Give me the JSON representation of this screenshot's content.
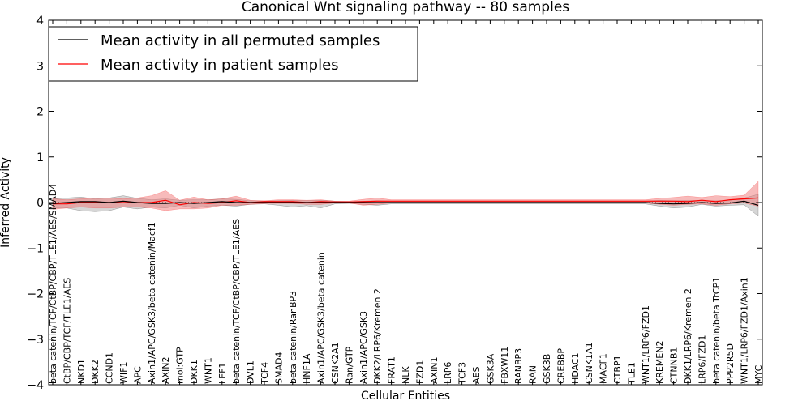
{
  "chart_data": {
    "type": "line",
    "title": "Canonical Wnt signaling pathway -- 80 samples",
    "xlabel": "Cellular Entities",
    "ylabel": "Inferred Activity",
    "ylim": [
      -4,
      4
    ],
    "yticks": [
      4,
      3,
      2,
      1,
      0,
      -1,
      -2,
      -3,
      -4
    ],
    "ytick_labels": [
      "4",
      "3",
      "2",
      "1",
      "0",
      "−1",
      "−2",
      "−3",
      "−4"
    ],
    "grid": false,
    "legend_position": "top-left",
    "categories": [
      "beta catenin/TCF/CtBP/CBP/TLE1/AES/SMAD4",
      "CtBP/CBP/TCF/TLE1/AES",
      "NKD1",
      "DKK2",
      "CCND1",
      "WIF1",
      "APC",
      "Axin1/APC/GSK3/beta catenin/Macf1",
      "AXIN2",
      "mol:GTP",
      "DKK1",
      "WNT1",
      "LEF1",
      "beta catenin/TCF/CtBP/CBP/TLE1/AES",
      "DVL1",
      "TCF4",
      "SMAD4",
      "beta catenin/RanBP3",
      "HNF1A",
      "Axin1/APC/GSK3/beta catenin",
      "CSNK2A1",
      "Ran/GTP",
      "Axin1/APC/GSK3",
      "DKK2/LRP6/Kremen 2",
      "FRAT1",
      "NLK",
      "FZD1",
      "AXIN1",
      "LRP6",
      "TCF3",
      "AES",
      "GSK3A",
      "FBXW11",
      "RANBP3",
      "RAN",
      "GSK3B",
      "CREBBP",
      "HDAC1",
      "CSNK1A1",
      "MACF1",
      "CTBP1",
      "TLE1",
      "WNT1/LRP6/FZD1",
      "KREMEN2",
      "CTNNB1",
      "DKK1/LRP6/Kremen 2",
      "LRP6/FZD1",
      "beta catenin/beta TrCP1",
      "PPP2R5D",
      "WNT1/LRP6/FZD1/Axin1",
      "MYC"
    ],
    "series": [
      {
        "name": "Mean activity in all permuted samples",
        "color": "#000000",
        "values": [
          -0.02,
          0.0,
          0.02,
          0.02,
          0.0,
          0.03,
          0.0,
          -0.02,
          -0.02,
          0.0,
          -0.02,
          0.0,
          0.02,
          0.0,
          0.0,
          0.0,
          0.0,
          0.0,
          0.0,
          0.0,
          0.0,
          0.0,
          0.0,
          0.0,
          0.0,
          0.0,
          0.0,
          0.0,
          0.0,
          0.0,
          0.0,
          0.0,
          0.0,
          0.0,
          0.0,
          0.0,
          0.0,
          0.0,
          0.0,
          0.0,
          0.0,
          0.0,
          0.0,
          -0.02,
          -0.03,
          -0.02,
          0.0,
          -0.02,
          -0.01,
          0.03,
          -0.06
        ],
        "band_color": "#b4b4b4",
        "band_lower": [
          -0.12,
          -0.12,
          -0.18,
          -0.2,
          -0.18,
          -0.1,
          -0.14,
          -0.1,
          -0.12,
          -0.06,
          -0.12,
          -0.08,
          -0.06,
          -0.08,
          -0.04,
          -0.03,
          -0.06,
          -0.1,
          -0.07,
          -0.12,
          -0.03,
          -0.02,
          -0.04,
          -0.06,
          -0.03,
          -0.03,
          -0.03,
          -0.03,
          -0.03,
          -0.03,
          -0.03,
          -0.03,
          -0.03,
          -0.03,
          -0.03,
          -0.03,
          -0.03,
          -0.03,
          -0.03,
          -0.03,
          -0.03,
          -0.03,
          -0.03,
          -0.08,
          -0.12,
          -0.1,
          -0.04,
          -0.08,
          -0.06,
          -0.05,
          -0.3
        ],
        "band_upper": [
          0.08,
          0.1,
          0.12,
          0.08,
          0.1,
          0.15,
          0.09,
          0.06,
          0.08,
          0.05,
          0.06,
          0.06,
          0.08,
          0.07,
          0.04,
          0.03,
          0.04,
          0.05,
          0.04,
          0.05,
          0.03,
          0.02,
          0.03,
          0.04,
          0.03,
          0.03,
          0.03,
          0.03,
          0.03,
          0.03,
          0.03,
          0.03,
          0.03,
          0.03,
          0.03,
          0.03,
          0.03,
          0.03,
          0.03,
          0.03,
          0.03,
          0.03,
          0.03,
          0.05,
          0.04,
          0.05,
          0.04,
          0.04,
          0.05,
          0.1,
          0.18
        ]
      },
      {
        "name": "Mean activity in patient samples",
        "color": "#ff0000",
        "values": [
          -0.03,
          -0.03,
          0.0,
          0.0,
          0.0,
          0.0,
          0.0,
          0.0,
          0.05,
          -0.05,
          0.0,
          -0.02,
          0.0,
          0.04,
          0.0,
          0.02,
          0.02,
          0.02,
          0.0,
          0.02,
          0.01,
          0.01,
          0.02,
          0.03,
          0.03,
          0.03,
          0.03,
          0.03,
          0.03,
          0.03,
          0.03,
          0.03,
          0.03,
          0.03,
          0.03,
          0.03,
          0.03,
          0.03,
          0.03,
          0.03,
          0.03,
          0.03,
          0.03,
          0.03,
          0.03,
          0.02,
          0.05,
          0.02,
          0.06,
          0.08,
          0.1
        ],
        "band_color": "#f07878",
        "band_lower": [
          -0.15,
          -0.12,
          -0.1,
          -0.12,
          -0.12,
          -0.1,
          -0.1,
          -0.12,
          -0.18,
          -0.14,
          -0.14,
          -0.12,
          -0.06,
          -0.06,
          -0.04,
          -0.02,
          -0.02,
          -0.02,
          -0.04,
          -0.04,
          -0.01,
          -0.01,
          -0.06,
          -0.04,
          -0.01,
          -0.01,
          -0.01,
          -0.01,
          -0.01,
          -0.01,
          -0.01,
          -0.01,
          -0.01,
          -0.01,
          -0.01,
          -0.01,
          -0.01,
          -0.01,
          -0.01,
          -0.01,
          -0.01,
          -0.01,
          -0.01,
          -0.04,
          -0.06,
          -0.04,
          -0.03,
          -0.06,
          -0.03,
          -0.01,
          -0.08
        ],
        "band_upper": [
          0.08,
          0.06,
          0.08,
          0.1,
          0.1,
          0.08,
          0.1,
          0.15,
          0.26,
          0.05,
          0.12,
          0.06,
          0.08,
          0.14,
          0.05,
          0.04,
          0.06,
          0.06,
          0.05,
          0.06,
          0.03,
          0.03,
          0.07,
          0.1,
          0.06,
          0.06,
          0.06,
          0.06,
          0.06,
          0.06,
          0.06,
          0.06,
          0.06,
          0.06,
          0.06,
          0.06,
          0.06,
          0.06,
          0.06,
          0.06,
          0.06,
          0.06,
          0.06,
          0.09,
          0.11,
          0.14,
          0.11,
          0.15,
          0.13,
          0.16,
          0.46
        ]
      }
    ],
    "zero_line": {
      "value": 0,
      "style": "dotted"
    }
  }
}
